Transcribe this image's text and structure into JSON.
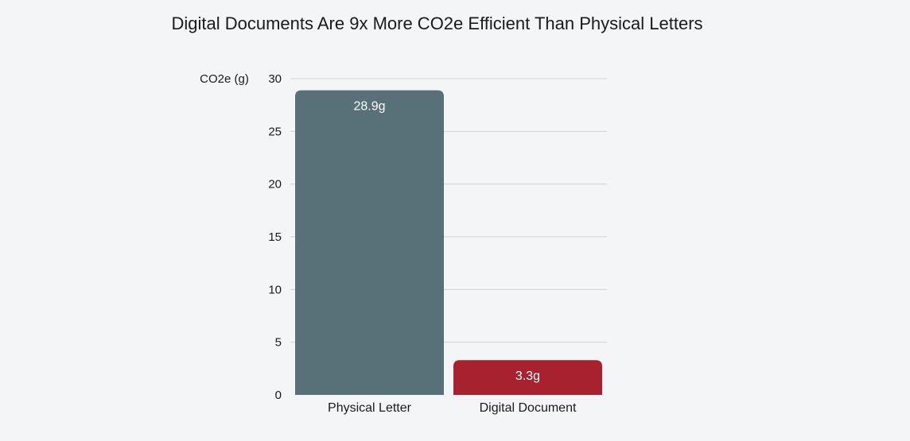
{
  "chart_data": {
    "type": "bar",
    "title": "Digital Documents Are 9x More CO2e Efficient Than Physical Letters",
    "xlabel": "",
    "ylabel": "CO2e (g)",
    "categories": [
      "Physical Letter",
      "Digital Document"
    ],
    "values": [
      28.9,
      3.3
    ],
    "data_labels": [
      "28.9g",
      "3.3g"
    ],
    "bar_colors": [
      "#587078",
      "#a8212e"
    ],
    "ylim": [
      0,
      30
    ],
    "yticks": [
      0,
      5,
      10,
      15,
      20,
      25,
      30
    ],
    "grid": true,
    "legend": "none"
  }
}
